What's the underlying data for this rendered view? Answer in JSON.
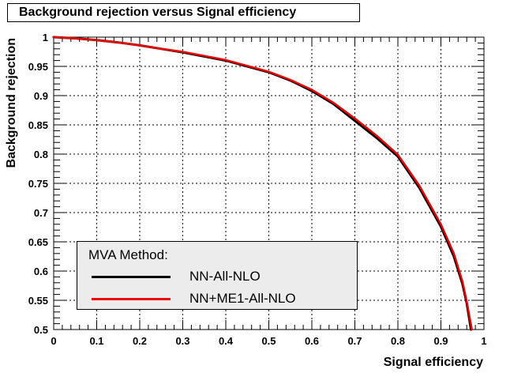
{
  "chart_data": {
    "type": "line",
    "title": "Background rejection versus Signal efficiency",
    "xlabel": "Signal efficiency",
    "ylabel": "Background rejection",
    "xlim": [
      0,
      1
    ],
    "ylim": [
      0.5,
      1
    ],
    "xticks": [
      "0",
      "0.1",
      "0.2",
      "0.3",
      "0.4",
      "0.5",
      "0.6",
      "0.7",
      "0.8",
      "0.9",
      "1"
    ],
    "yticks": [
      "0.5",
      "0.55",
      "0.6",
      "0.65",
      "0.7",
      "0.75",
      "0.8",
      "0.85",
      "0.9",
      "0.95",
      "1"
    ],
    "grid": true,
    "legend": {
      "title": "MVA Method:",
      "placement": "bottom-left"
    },
    "series": [
      {
        "name": "NN-All-NLO",
        "color": "#000000",
        "x": [
          0,
          0.05,
          0.1,
          0.15,
          0.2,
          0.25,
          0.3,
          0.35,
          0.4,
          0.45,
          0.5,
          0.55,
          0.6,
          0.65,
          0.7,
          0.75,
          0.8,
          0.85,
          0.9,
          0.93,
          0.95,
          0.96,
          0.97
        ],
        "y": [
          1.0,
          0.998,
          0.995,
          0.991,
          0.986,
          0.98,
          0.974,
          0.967,
          0.96,
          0.95,
          0.94,
          0.926,
          0.908,
          0.886,
          0.857,
          0.828,
          0.796,
          0.742,
          0.676,
          0.625,
          0.578,
          0.545,
          0.5
        ]
      },
      {
        "name": "NN+ME1-All-NLO",
        "color": "#ee0000",
        "x": [
          0,
          0.05,
          0.1,
          0.15,
          0.2,
          0.25,
          0.3,
          0.35,
          0.4,
          0.45,
          0.5,
          0.55,
          0.6,
          0.65,
          0.7,
          0.75,
          0.8,
          0.85,
          0.9,
          0.93,
          0.95,
          0.96,
          0.972
        ],
        "y": [
          1.0,
          0.998,
          0.995,
          0.991,
          0.986,
          0.98,
          0.975,
          0.968,
          0.961,
          0.951,
          0.941,
          0.927,
          0.91,
          0.888,
          0.861,
          0.832,
          0.799,
          0.746,
          0.68,
          0.63,
          0.582,
          0.548,
          0.5
        ]
      }
    ]
  }
}
